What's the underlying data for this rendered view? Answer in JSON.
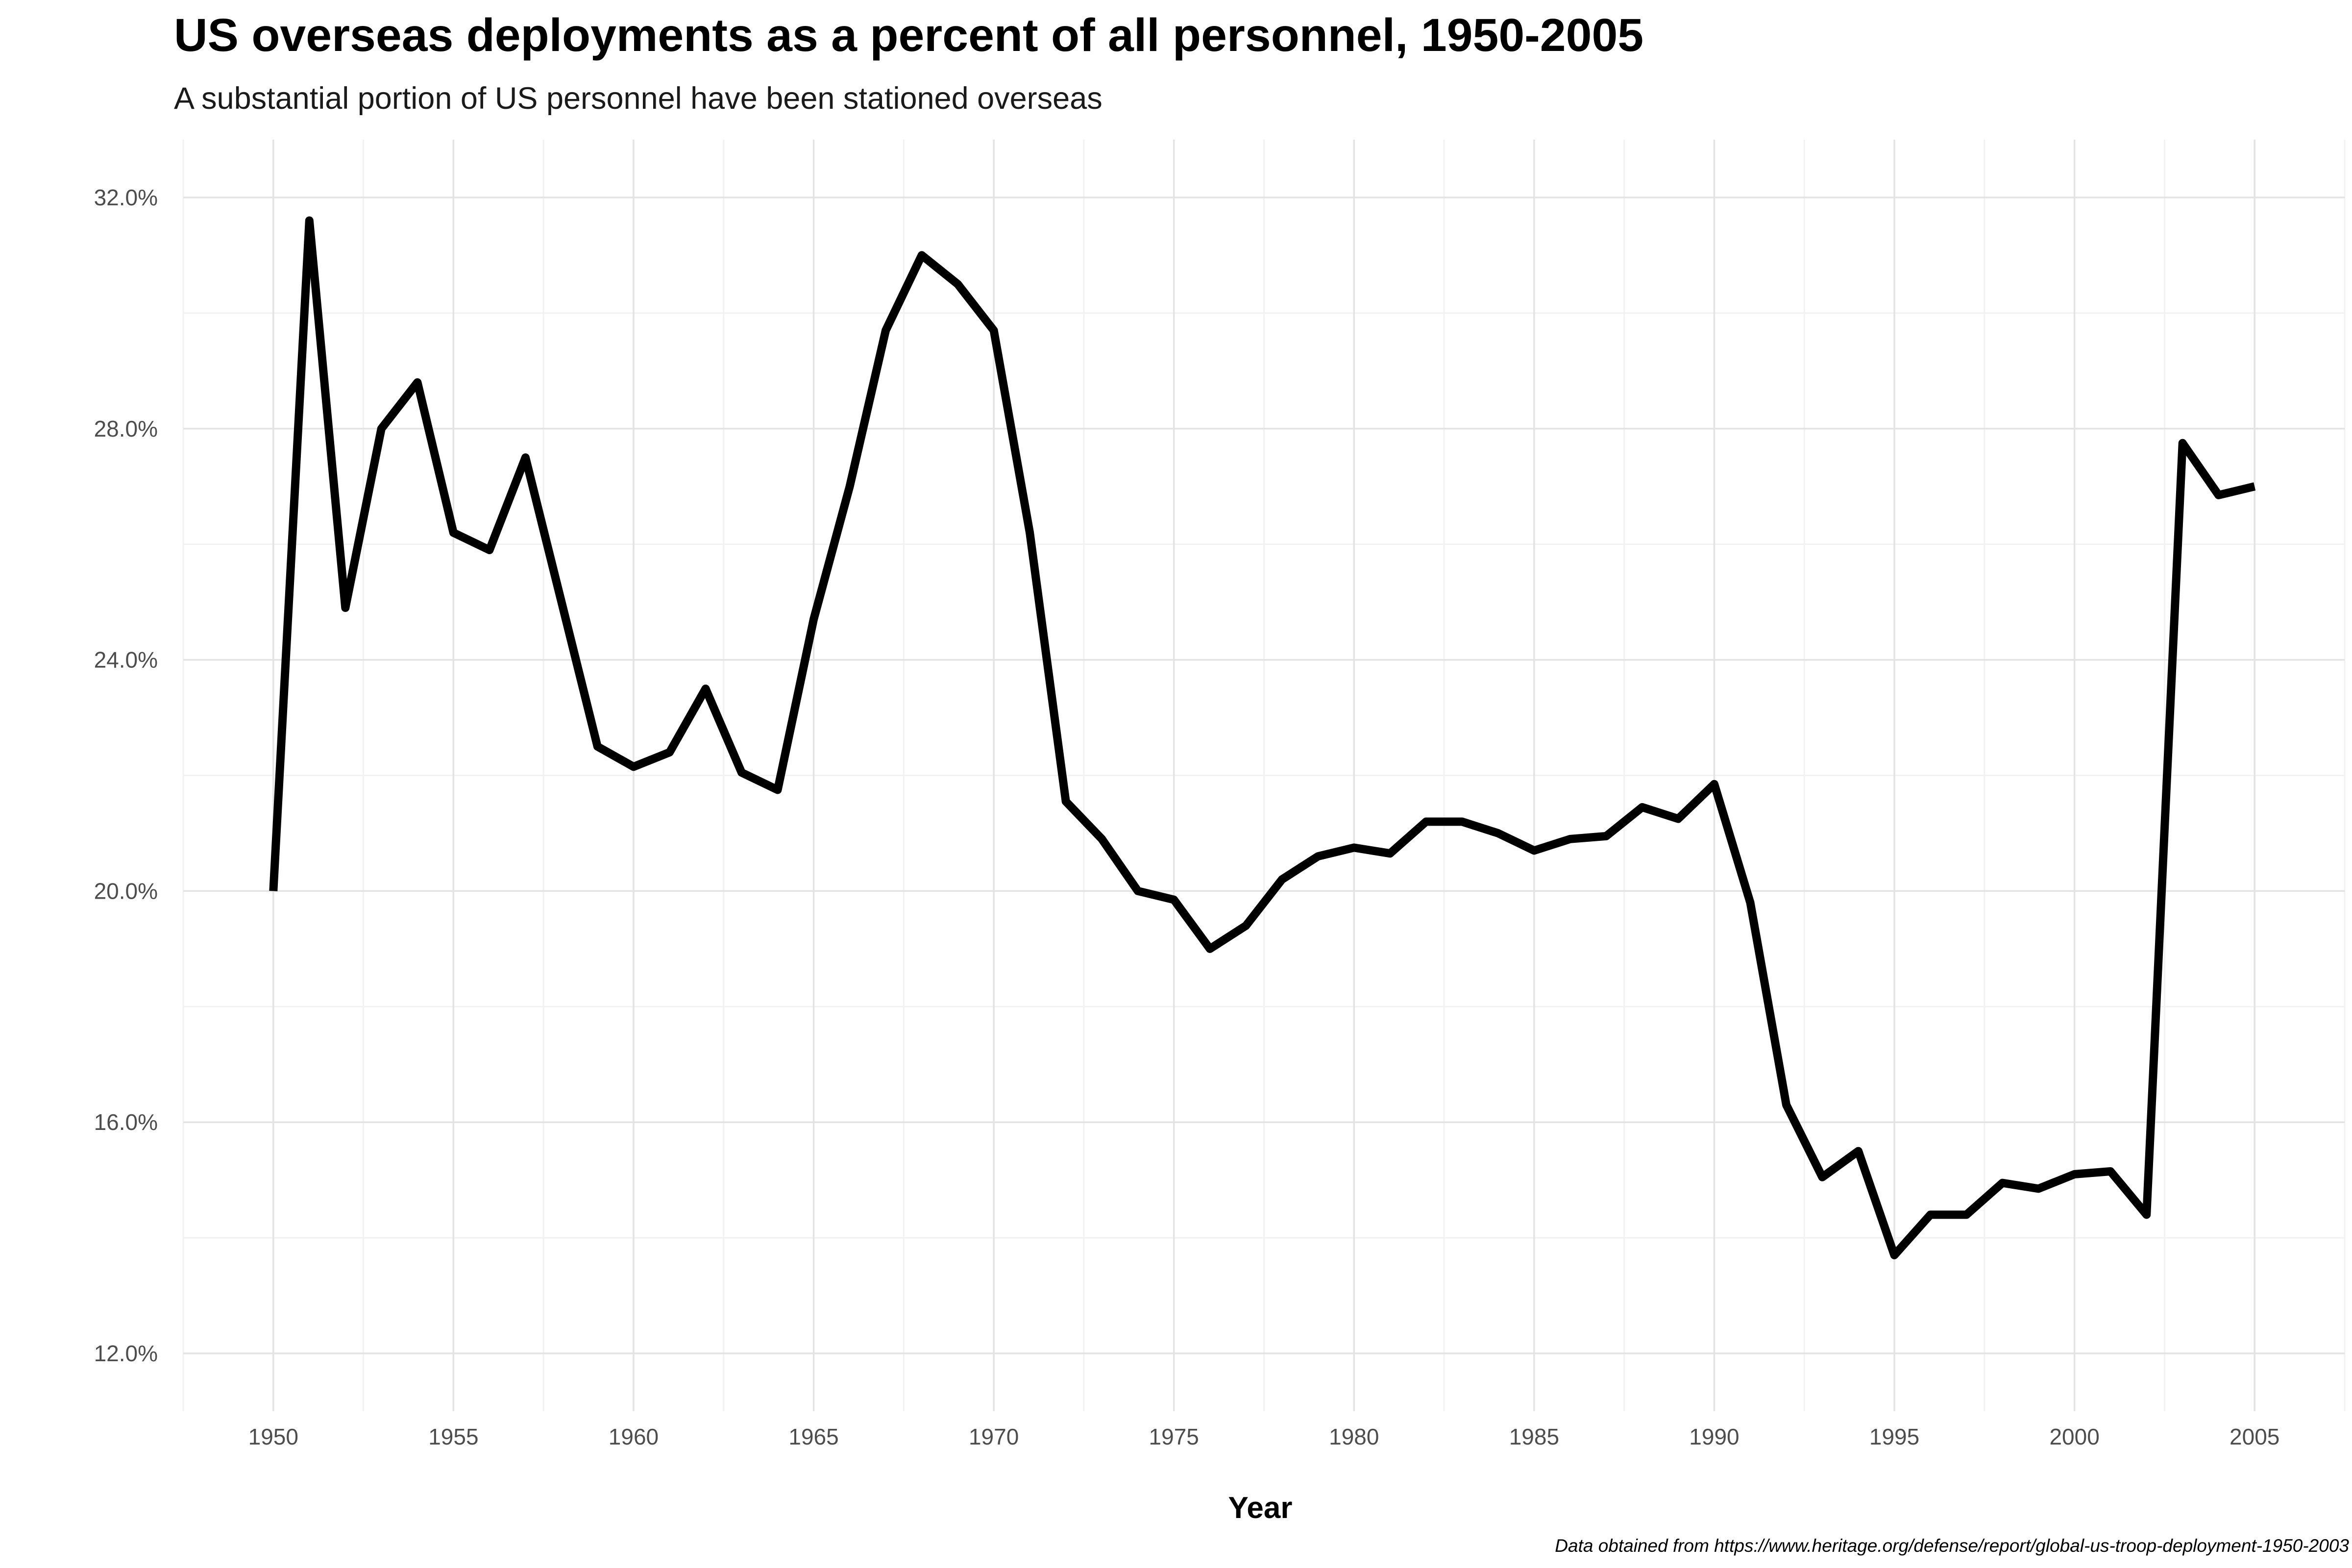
{
  "chart_data": {
    "type": "line",
    "title": "US overseas deployments as a percent of all personnel, 1950-2005",
    "subtitle": "A substantial portion of US personnel have been stationed overseas",
    "caption": "Data obtained from https://www.heritage.org/defense/report/global-us-troop-deployment-1950-2003",
    "xlabel": "Year",
    "ylabel": "",
    "xlim": [
      1947.5,
      2007.5
    ],
    "ylim": [
      11.0,
      33.0
    ],
    "x_ticks": [
      1950,
      1955,
      1960,
      1965,
      1970,
      1975,
      1980,
      1985,
      1990,
      1995,
      2000,
      2005
    ],
    "y_ticks": [
      12.0,
      16.0,
      20.0,
      24.0,
      28.0,
      32.0
    ],
    "y_tick_labels": [
      "12.0%",
      "16.0%",
      "20.0%",
      "24.0%",
      "28.0%",
      "32.0%"
    ],
    "grid": true,
    "legend": "none",
    "line_color": "#000000",
    "x": [
      1950,
      1951,
      1952,
      1953,
      1954,
      1955,
      1956,
      1957,
      1958,
      1959,
      1960,
      1961,
      1962,
      1963,
      1964,
      1965,
      1966,
      1967,
      1968,
      1969,
      1970,
      1971,
      1972,
      1973,
      1974,
      1975,
      1976,
      1977,
      1978,
      1979,
      1980,
      1981,
      1982,
      1983,
      1984,
      1985,
      1986,
      1987,
      1988,
      1989,
      1990,
      1991,
      1992,
      1993,
      1994,
      1995,
      1996,
      1997,
      1998,
      1999,
      2000,
      2001,
      2002,
      2003,
      2004,
      2005
    ],
    "values": [
      20.0,
      31.6,
      24.9,
      28.0,
      28.8,
      26.2,
      25.9,
      27.5,
      25.0,
      22.5,
      22.15,
      22.4,
      23.5,
      22.05,
      21.75,
      24.7,
      27.0,
      29.7,
      31.0,
      30.5,
      29.7,
      26.2,
      21.55,
      20.9,
      20.0,
      19.85,
      19.0,
      19.4,
      20.2,
      20.6,
      20.75,
      20.65,
      21.2,
      21.2,
      21.0,
      20.7,
      20.9,
      20.95,
      21.45,
      21.25,
      21.85,
      19.8,
      16.3,
      15.05,
      15.5,
      13.7,
      14.4,
      14.4,
      14.95,
      14.85,
      15.1,
      15.15,
      14.4,
      27.75,
      26.85,
      27.0
    ]
  }
}
